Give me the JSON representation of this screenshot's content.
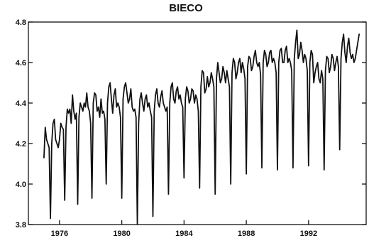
{
  "chart_data": {
    "type": "line",
    "title": "BIECO",
    "xlabel": "",
    "ylabel": "",
    "frequency": "monthly",
    "xlim": [
      1974.0,
      1995.7
    ],
    "ylim": [
      3.8,
      4.8
    ],
    "grid": false,
    "legend": "none",
    "x_ticks": [
      1976,
      1980,
      1984,
      1988,
      1992
    ],
    "x_tick_labels": [
      "1976",
      "1980",
      "1984",
      "1988",
      "1992"
    ],
    "y_ticks": [
      3.8,
      4.0,
      4.2,
      4.4,
      4.6,
      4.8
    ],
    "y_tick_labels": [
      "3.8",
      "4.0",
      "4.2",
      "4.4",
      "4.6",
      "4.8"
    ],
    "colors": {
      "line": "#111111",
      "axis": "#111111",
      "background": "#ffffff"
    },
    "series": [
      {
        "x": [
          1975.0,
          1975.083,
          1975.167,
          1975.25,
          1975.333,
          1975.417,
          1975.5,
          1975.583,
          1975.667,
          1975.75,
          1975.833,
          1975.917,
          1976.0,
          1976.083,
          1976.167,
          1976.25,
          1976.333,
          1976.417,
          1976.5,
          1976.583,
          1976.667,
          1976.75,
          1976.833,
          1976.917,
          1977.0,
          1977.083,
          1977.167,
          1977.25,
          1977.333,
          1977.417,
          1977.5,
          1977.583,
          1977.667,
          1977.75,
          1977.833,
          1977.917,
          1978.0,
          1978.083,
          1978.167,
          1978.25,
          1978.333,
          1978.417,
          1978.5,
          1978.583,
          1978.667,
          1978.75,
          1978.833,
          1978.917,
          1979.0,
          1979.083,
          1979.167,
          1979.25,
          1979.333,
          1979.417,
          1979.5,
          1979.583,
          1979.667,
          1979.75,
          1979.833,
          1979.917,
          1980.0,
          1980.083,
          1980.167,
          1980.25,
          1980.333,
          1980.417,
          1980.5,
          1980.583,
          1980.667,
          1980.75,
          1980.833,
          1980.917,
          1981.0,
          1981.083,
          1981.167,
          1981.25,
          1981.333,
          1981.417,
          1981.5,
          1981.583,
          1981.667,
          1981.75,
          1981.833,
          1981.917,
          1982.0,
          1982.083,
          1982.167,
          1982.25,
          1982.333,
          1982.417,
          1982.5,
          1982.583,
          1982.667,
          1982.75,
          1982.833,
          1982.917,
          1983.0,
          1983.083,
          1983.167,
          1983.25,
          1983.333,
          1983.417,
          1983.5,
          1983.583,
          1983.667,
          1983.75,
          1983.833,
          1983.917,
          1984.0,
          1984.083,
          1984.167,
          1984.25,
          1984.333,
          1984.417,
          1984.5,
          1984.583,
          1984.667,
          1984.75,
          1984.833,
          1984.917,
          1985.0,
          1985.083,
          1985.167,
          1985.25,
          1985.333,
          1985.417,
          1985.5,
          1985.583,
          1985.667,
          1985.75,
          1985.833,
          1985.917,
          1986.0,
          1986.083,
          1986.167,
          1986.25,
          1986.333,
          1986.417,
          1986.5,
          1986.583,
          1986.667,
          1986.75,
          1986.833,
          1986.917,
          1987.0,
          1987.083,
          1987.167,
          1987.25,
          1987.333,
          1987.417,
          1987.5,
          1987.583,
          1987.667,
          1987.75,
          1987.833,
          1987.917,
          1988.0,
          1988.083,
          1988.167,
          1988.25,
          1988.333,
          1988.417,
          1988.5,
          1988.583,
          1988.667,
          1988.75,
          1988.833,
          1988.917,
          1989.0,
          1989.083,
          1989.167,
          1989.25,
          1989.333,
          1989.417,
          1989.5,
          1989.583,
          1989.667,
          1989.75,
          1989.833,
          1989.917,
          1990.0,
          1990.083,
          1990.167,
          1990.25,
          1990.333,
          1990.417,
          1990.5,
          1990.583,
          1990.667,
          1990.75,
          1990.833,
          1990.917,
          1991.0,
          1991.083,
          1991.167,
          1991.25,
          1991.333,
          1991.417,
          1991.5,
          1991.583,
          1991.667,
          1991.75,
          1991.833,
          1991.917,
          1992.0,
          1992.083,
          1992.167,
          1992.25,
          1992.333,
          1992.417,
          1992.5,
          1992.583,
          1992.667,
          1992.75,
          1992.833,
          1992.917,
          1993.0,
          1993.083,
          1993.167,
          1993.25,
          1993.333,
          1993.417,
          1993.5,
          1993.583,
          1993.667,
          1993.75,
          1993.833,
          1993.917,
          1994.0,
          1994.083,
          1994.167,
          1994.25,
          1994.333,
          1994.417,
          1994.5,
          1994.583,
          1994.667,
          1994.75,
          1994.833,
          1994.917,
          1995.0,
          1995.083,
          1995.167,
          1995.25
        ],
        "values": [
          4.13,
          4.28,
          4.22,
          4.2,
          4.18,
          3.83,
          4.2,
          4.3,
          4.32,
          4.22,
          4.2,
          4.18,
          4.22,
          4.3,
          4.28,
          4.27,
          3.92,
          4.28,
          4.37,
          4.35,
          4.37,
          4.3,
          4.44,
          4.36,
          4.32,
          4.35,
          3.9,
          4.33,
          4.4,
          4.38,
          4.36,
          4.4,
          4.38,
          4.45,
          4.38,
          4.36,
          4.3,
          3.93,
          4.4,
          4.45,
          4.44,
          4.36,
          4.38,
          4.33,
          4.42,
          4.35,
          4.36,
          4.32,
          4.0,
          4.4,
          4.48,
          4.5,
          4.42,
          4.35,
          4.44,
          4.47,
          4.38,
          4.4,
          4.38,
          4.33,
          3.93,
          4.42,
          4.48,
          4.5,
          4.45,
          4.4,
          4.42,
          4.47,
          4.38,
          4.36,
          4.37,
          4.33,
          3.8,
          4.3,
          4.42,
          4.45,
          4.4,
          4.36,
          4.42,
          4.44,
          4.38,
          4.4,
          4.36,
          4.33,
          3.84,
          4.36,
          4.44,
          4.47,
          4.4,
          4.38,
          4.43,
          4.46,
          4.4,
          4.38,
          4.36,
          4.38,
          3.95,
          4.4,
          4.48,
          4.5,
          4.42,
          4.4,
          4.46,
          4.48,
          4.42,
          4.44,
          4.4,
          4.38,
          4.03,
          4.42,
          4.48,
          4.46,
          4.4,
          4.42,
          4.47,
          4.46,
          4.4,
          4.44,
          4.42,
          4.36,
          3.98,
          4.48,
          4.56,
          4.55,
          4.45,
          4.47,
          4.53,
          4.48,
          4.5,
          4.55,
          4.52,
          4.48,
          3.95,
          4.52,
          4.6,
          4.55,
          4.5,
          4.52,
          4.58,
          4.55,
          4.5,
          4.56,
          4.52,
          4.48,
          4.0,
          4.55,
          4.62,
          4.6,
          4.52,
          4.55,
          4.6,
          4.62,
          4.55,
          4.6,
          4.57,
          4.52,
          4.05,
          4.58,
          4.63,
          4.62,
          4.56,
          4.58,
          4.63,
          4.66,
          4.6,
          4.58,
          4.6,
          4.54,
          4.08,
          4.6,
          4.66,
          4.64,
          4.58,
          4.6,
          4.65,
          4.66,
          4.6,
          4.62,
          4.6,
          4.55,
          4.07,
          4.6,
          4.66,
          4.67,
          4.6,
          4.6,
          4.66,
          4.68,
          4.6,
          4.62,
          4.6,
          4.56,
          4.08,
          4.62,
          4.7,
          4.76,
          4.62,
          4.64,
          4.7,
          4.66,
          4.6,
          4.64,
          4.62,
          4.56,
          4.09,
          4.6,
          4.66,
          4.64,
          4.5,
          4.55,
          4.58,
          4.6,
          4.52,
          4.5,
          4.56,
          4.52,
          4.07,
          4.56,
          4.63,
          4.62,
          4.55,
          4.58,
          4.64,
          4.62,
          4.56,
          4.6,
          4.63,
          4.58,
          4.17,
          4.62,
          4.7,
          4.74,
          4.65,
          4.6,
          4.68,
          4.72,
          4.65,
          4.62,
          4.64,
          4.6,
          4.62,
          4.66,
          4.7,
          4.74
        ]
      }
    ]
  }
}
